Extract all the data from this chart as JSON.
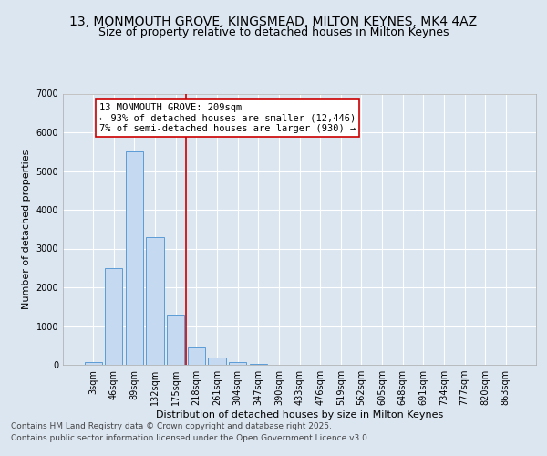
{
  "title_line1": "13, MONMOUTH GROVE, KINGSMEAD, MILTON KEYNES, MK4 4AZ",
  "title_line2": "Size of property relative to detached houses in Milton Keynes",
  "xlabel": "Distribution of detached houses by size in Milton Keynes",
  "ylabel": "Number of detached properties",
  "categories": [
    "3sqm",
    "46sqm",
    "89sqm",
    "132sqm",
    "175sqm",
    "218sqm",
    "261sqm",
    "304sqm",
    "347sqm",
    "390sqm",
    "433sqm",
    "476sqm",
    "519sqm",
    "562sqm",
    "605sqm",
    "648sqm",
    "691sqm",
    "734sqm",
    "777sqm",
    "820sqm",
    "863sqm"
  ],
  "values": [
    60,
    2500,
    5500,
    3300,
    1300,
    450,
    200,
    75,
    30,
    8,
    2,
    0,
    0,
    0,
    0,
    0,
    0,
    0,
    0,
    0,
    0
  ],
  "bar_color": "#c5d9f0",
  "bar_edge_color": "#5b9bd5",
  "vline_idx": 5,
  "vline_color": "#cc0000",
  "annotation_text": "13 MONMOUTH GROVE: 209sqm\n← 93% of detached houses are smaller (12,446)\n7% of semi-detached houses are larger (930) →",
  "annotation_box_facecolor": "#ffffff",
  "annotation_box_edgecolor": "#cc0000",
  "ylim": [
    0,
    7000
  ],
  "yticks": [
    0,
    1000,
    2000,
    3000,
    4000,
    5000,
    6000,
    7000
  ],
  "background_color": "#dce6f1",
  "grid_color": "#ffffff",
  "footer_line1": "Contains HM Land Registry data © Crown copyright and database right 2025.",
  "footer_line2": "Contains public sector information licensed under the Open Government Licence v3.0.",
  "title_fontsize": 10,
  "subtitle_fontsize": 9,
  "tick_fontsize": 7,
  "ylabel_fontsize": 8,
  "xlabel_fontsize": 8,
  "footer_fontsize": 6.5,
  "annot_fontsize": 7.5
}
